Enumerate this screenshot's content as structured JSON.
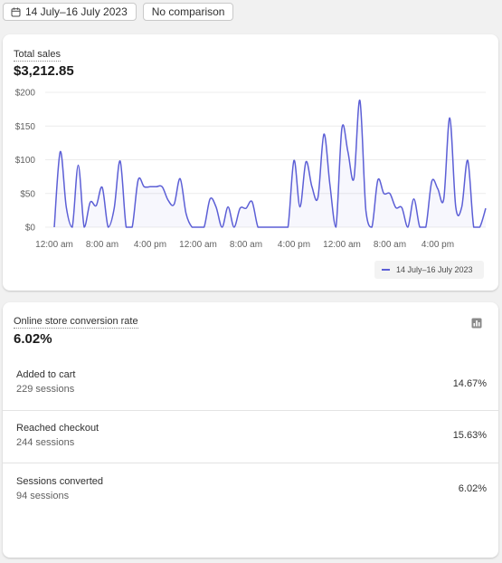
{
  "toolbar": {
    "date_range": "14 July–16 July 2023",
    "comparison": "No comparison"
  },
  "sales_card": {
    "title": "Total sales",
    "value": "$3,212.85",
    "legend": "14 July–16 July 2023"
  },
  "chart_data": {
    "type": "line",
    "title": "Total sales",
    "y_tick_labels": [
      "$0",
      "$50",
      "$100",
      "$150",
      "$200"
    ],
    "ylim": [
      0,
      200
    ],
    "x_tick_labels": [
      "12:00 am",
      "8:00 am",
      "4:00 pm",
      "12:00 am",
      "8:00 am",
      "4:00 pm",
      "12:00 am",
      "8:00 am",
      "4:00 pm"
    ],
    "x_tick_hours": [
      0,
      8,
      16,
      24,
      32,
      40,
      48,
      56,
      64
    ],
    "x_unit": "hours since 12:00 am, 14 July 2023",
    "xlim": [
      0,
      72
    ],
    "grid": true,
    "legend_position": "bottom-right",
    "series": [
      {
        "name": "14 July–16 July 2023",
        "color": "#5c5fd6",
        "x": [
          0,
          1,
          2,
          3,
          4,
          5,
          6,
          7,
          8,
          9,
          10,
          11,
          12,
          13,
          14,
          15,
          16,
          17,
          18,
          19,
          20,
          21,
          22,
          23,
          24,
          25,
          26,
          27,
          28,
          29,
          30,
          31,
          32,
          33,
          34,
          35,
          36,
          37,
          38,
          39,
          40,
          41,
          42,
          43,
          44,
          45,
          46,
          47,
          48,
          49,
          50,
          51,
          52,
          53,
          54,
          55,
          56,
          57,
          58,
          59,
          60,
          61,
          62,
          63,
          64,
          65,
          66,
          67,
          68,
          69,
          70,
          71,
          72
        ],
        "values": [
          0,
          112,
          30,
          0,
          92,
          0,
          37,
          32,
          59,
          0,
          28,
          98,
          0,
          0,
          70,
          60,
          60,
          60,
          60,
          40,
          34,
          72,
          20,
          0,
          0,
          0,
          42,
          30,
          0,
          30,
          0,
          28,
          28,
          38,
          0,
          0,
          0,
          0,
          0,
          0,
          99,
          30,
          97,
          60,
          44,
          138,
          63,
          0,
          147,
          112,
          72,
          188,
          25,
          0,
          70,
          50,
          50,
          29,
          29,
          0,
          42,
          0,
          0,
          68,
          57,
          42,
          162,
          30,
          30,
          99,
          0,
          0,
          28
        ]
      }
    ]
  },
  "conversion_card": {
    "title": "Online store conversion rate",
    "value": "6.02%",
    "icon": "bar-chart-icon",
    "rows": [
      {
        "label": "Added to cart",
        "sessions": "229 sessions",
        "pct": "14.67%"
      },
      {
        "label": "Reached checkout",
        "sessions": "244 sessions",
        "pct": "15.63%"
      },
      {
        "label": "Sessions converted",
        "sessions": "94 sessions",
        "pct": "6.02%"
      }
    ]
  }
}
